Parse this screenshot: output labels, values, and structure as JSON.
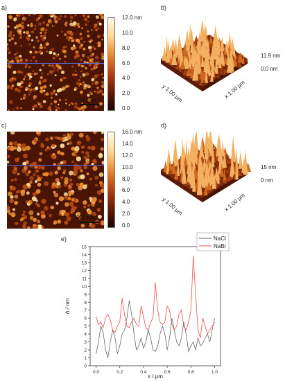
{
  "panels": {
    "a": {
      "label": "a)",
      "scalebar": "200 nm",
      "colorbar": {
        "ticks": [
          "12.0 nm",
          "10.0",
          "8.0",
          "6.0",
          "4.0",
          "2.0",
          "0.0"
        ]
      }
    },
    "b": {
      "label": "b)",
      "z_top": "11.9 nm",
      "z_bottom": "0.0 nm",
      "y_axis": "y 1.00 µm",
      "x_axis": "x 1.00 µm"
    },
    "c": {
      "label": "c)",
      "scalebar": "200 nm",
      "colorbar": {
        "ticks": [
          "16.0 nm",
          "14.0",
          "12.0",
          "10.0",
          "8.0",
          "6.0",
          "4.0",
          "2.0",
          "0.0"
        ]
      }
    },
    "d": {
      "label": "d)",
      "z_top": "15 nm",
      "z_bottom": "0 nm",
      "y_axis": "y 1.00 µm",
      "x_axis": "x 1.00 µm"
    },
    "e": {
      "label": "e)"
    }
  },
  "colors": {
    "nacl": "#666666",
    "nabr": "#e8504a",
    "afm_dark": "#4a1405",
    "afm_mid": "#b84a10",
    "afm_bright": "#ffe6a0",
    "profile_line": "#5a6ad8"
  },
  "chart_data": {
    "type": "line",
    "xlabel": "x / µm",
    "ylabel": "h / nm",
    "xlim": [
      -0.05,
      1.05
    ],
    "ylim": [
      0,
      15
    ],
    "x_ticks": [
      "0.0",
      "0.2",
      "0.4",
      "0.6",
      "0.8",
      "1.0"
    ],
    "y_ticks": [
      "0",
      "1",
      "2",
      "3",
      "4",
      "5",
      "6",
      "7",
      "8",
      "9",
      "10",
      "11",
      "12",
      "13",
      "14",
      "15"
    ],
    "legend_position": "top-right",
    "series": [
      {
        "name": "NaCl",
        "color": "#666666",
        "x": [
          0.0,
          0.02,
          0.04,
          0.06,
          0.08,
          0.1,
          0.12,
          0.14,
          0.16,
          0.18,
          0.2,
          0.22,
          0.24,
          0.26,
          0.28,
          0.3,
          0.32,
          0.34,
          0.36,
          0.38,
          0.4,
          0.42,
          0.44,
          0.46,
          0.48,
          0.5,
          0.52,
          0.54,
          0.56,
          0.58,
          0.6,
          0.62,
          0.64,
          0.66,
          0.68,
          0.7,
          0.72,
          0.74,
          0.76,
          0.78,
          0.8,
          0.82,
          0.84,
          0.86,
          0.88,
          0.9,
          0.92,
          0.94,
          0.96,
          0.98,
          1.0
        ],
        "y": [
          1.5,
          3.0,
          5.0,
          4.2,
          2.0,
          1.0,
          3.0,
          4.5,
          3.5,
          1.5,
          2.5,
          4.0,
          4.5,
          6.0,
          8.2,
          6.5,
          4.0,
          2.0,
          2.5,
          3.5,
          2.2,
          3.0,
          4.5,
          3.5,
          2.0,
          1.8,
          2.5,
          4.0,
          5.0,
          4.0,
          2.0,
          3.5,
          6.0,
          4.5,
          3.0,
          2.5,
          3.5,
          5.5,
          4.0,
          1.8,
          2.5,
          3.0,
          2.0,
          3.5,
          2.5,
          2.8,
          3.5,
          4.0,
          3.0,
          4.5,
          6.0
        ]
      },
      {
        "name": "NaBr",
        "color": "#e8504a",
        "x": [
          0.0,
          0.02,
          0.04,
          0.06,
          0.08,
          0.1,
          0.12,
          0.14,
          0.16,
          0.18,
          0.2,
          0.22,
          0.24,
          0.26,
          0.28,
          0.3,
          0.32,
          0.34,
          0.36,
          0.38,
          0.4,
          0.42,
          0.44,
          0.46,
          0.48,
          0.5,
          0.52,
          0.54,
          0.56,
          0.58,
          0.6,
          0.62,
          0.64,
          0.66,
          0.68,
          0.7,
          0.72,
          0.74,
          0.76,
          0.78,
          0.8,
          0.82,
          0.84,
          0.86,
          0.88,
          0.9,
          0.92,
          0.94,
          0.96,
          0.98,
          1.0
        ],
        "y": [
          6.2,
          5.2,
          5.5,
          4.8,
          6.0,
          6.5,
          5.8,
          4.5,
          4.2,
          5.0,
          5.5,
          8.5,
          6.5,
          5.0,
          4.8,
          5.5,
          6.0,
          5.2,
          5.0,
          7.5,
          6.2,
          4.8,
          4.5,
          5.5,
          6.0,
          10.5,
          7.0,
          5.5,
          5.2,
          5.5,
          7.5,
          7.0,
          5.2,
          4.5,
          5.0,
          6.5,
          7.0,
          5.0,
          4.5,
          5.5,
          7.0,
          13.8,
          9.0,
          4.5,
          3.5,
          6.0,
          5.0,
          4.0,
          4.5,
          5.0,
          5.5
        ]
      }
    ]
  }
}
